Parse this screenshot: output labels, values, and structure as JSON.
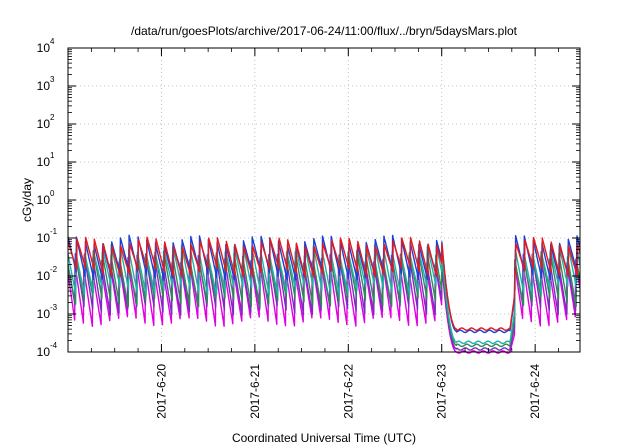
{
  "chart_data": {
    "type": "line",
    "title": "/data/run/goesPlots/archive/2017-06-24/11:00/flux/../bryn/5daysMars.plot",
    "xlabel": "Coordinated Universal Time (UTC)",
    "ylabel": "cGy/day",
    "x_scale": "time",
    "xlim_days": [
      0.0,
      5.48
    ],
    "x_ticks": [
      {
        "label": "2017-6-20",
        "day": 1.0
      },
      {
        "label": "2017-6-21",
        "day": 2.0
      },
      {
        "label": "2017-6-22",
        "day": 3.0
      },
      {
        "label": "2017-6-23",
        "day": 4.0
      },
      {
        "label": "2017-6-24",
        "day": 5.0
      }
    ],
    "y_scale": "log",
    "ylim": [
      0.0001,
      10000
    ],
    "y_ticks": [
      {
        "base": "10",
        "exp": "-4",
        "value": 0.0001
      },
      {
        "base": "10",
        "exp": "-3",
        "value": 0.001
      },
      {
        "base": "10",
        "exp": "-2",
        "value": 0.01
      },
      {
        "base": "10",
        "exp": "-1",
        "value": 0.1
      },
      {
        "base": "10",
        "exp": "0",
        "value": 1
      },
      {
        "base": "10",
        "exp": "1",
        "value": 10
      },
      {
        "base": "10",
        "exp": "2",
        "value": 100
      },
      {
        "base": "10",
        "exp": "3",
        "value": 1000
      },
      {
        "base": "10",
        "exp": "4",
        "value": 10000
      }
    ],
    "grid": true,
    "legend": "none",
    "pattern": {
      "sawtooth_period_days": 0.094,
      "active_intervals_days": [
        [
          0.0,
          4.0
        ],
        [
          4.78,
          5.48
        ]
      ],
      "dropout_interval_days": [
        4.0,
        4.78
      ],
      "peak_value": 0.08
    },
    "series": [
      {
        "color": "#e41a1c",
        "peak": 0.08,
        "trough": 0.012,
        "dropout_floor": 0.0004
      },
      {
        "color": "#1a3fd6",
        "peak": 0.09,
        "trough": 0.01,
        "dropout_floor": 0.00035
      },
      {
        "color": "#20b2aa",
        "peak": 0.05,
        "trough": 0.004,
        "dropout_floor": 0.00018
      },
      {
        "color": "#2e8b57",
        "peak": 0.035,
        "trough": 0.002,
        "dropout_floor": 0.00015
      },
      {
        "color": "#7b2cbf",
        "peak": 0.03,
        "trough": 0.0012,
        "dropout_floor": 0.00012
      },
      {
        "color": "#e000e0",
        "peak": 0.02,
        "trough": 0.0006,
        "dropout_floor": 0.0001
      }
    ]
  }
}
